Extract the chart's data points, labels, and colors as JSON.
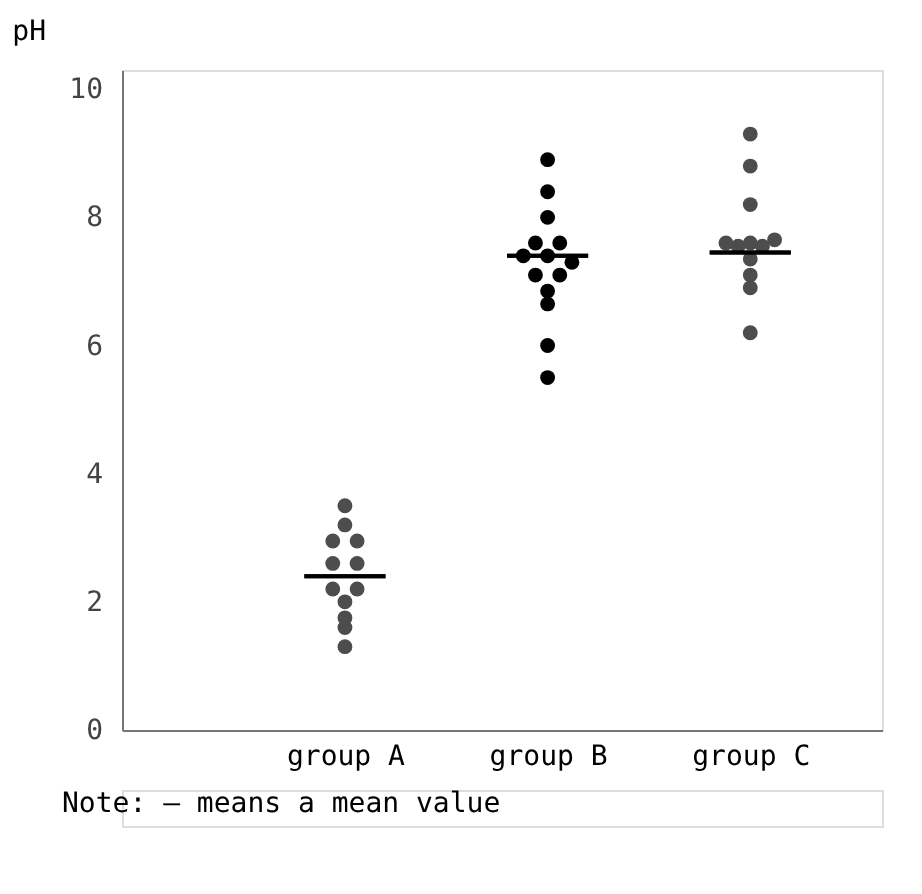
{
  "chart_data": {
    "type": "scatter",
    "ylabel": "pH",
    "categories": [
      "group A",
      "group B",
      "group C"
    ],
    "ylim": [
      0,
      10.3
    ],
    "yticks": [
      0,
      2,
      4,
      6,
      8,
      10
    ],
    "grid": false,
    "marker": "circle",
    "series": [
      {
        "color": "#4d4d4d",
        "x": [
          "group A",
          "group A",
          "group A",
          "group A",
          "group A",
          "group A",
          "group A",
          "group A",
          "group A",
          "group A",
          "group A",
          "group A"
        ],
        "values": [
          3.5,
          3.2,
          2.95,
          2.95,
          2.6,
          2.6,
          2.2,
          2.2,
          2.0,
          1.75,
          1.6,
          1.3
        ]
      },
      {
        "color": "#000000",
        "x": [
          "group B",
          "group B",
          "group B",
          "group B",
          "group B",
          "group B",
          "group B",
          "group B",
          "group B",
          "group B",
          "group B",
          "group B",
          "group B",
          "group B"
        ],
        "values": [
          8.9,
          8.4,
          8.0,
          7.6,
          7.6,
          7.4,
          7.4,
          7.3,
          7.1,
          7.1,
          6.85,
          6.65,
          6.0,
          5.5
        ]
      },
      {
        "color": "#4d4d4d",
        "x": [
          "group C",
          "group C",
          "group C",
          "group C",
          "group C",
          "group C",
          "group C",
          "group C",
          "group C",
          "group C",
          "group C",
          "group C"
        ],
        "values": [
          9.3,
          8.8,
          8.2,
          7.6,
          7.6,
          7.65,
          7.55,
          7.55,
          7.35,
          7.1,
          6.9,
          6.2
        ]
      },
      {
        "type": "box",
        "color": "#000000",
        "boxes": [
          {
            "low": 2.4,
            "q1": 2.4,
            "median": 2.4,
            "q3": 2.4,
            "high": 2.4
          },
          {
            "low": 7.4,
            "q1": 7.4,
            "median": 7.4,
            "q3": 7.4,
            "high": 7.4
          },
          {
            "low": 7.45,
            "q1": 7.45,
            "median": 7.45,
            "q3": 7.45,
            "high": 7.45
          }
        ]
      }
    ],
    "annotations": [
      "Note: — means a mean value"
    ]
  }
}
